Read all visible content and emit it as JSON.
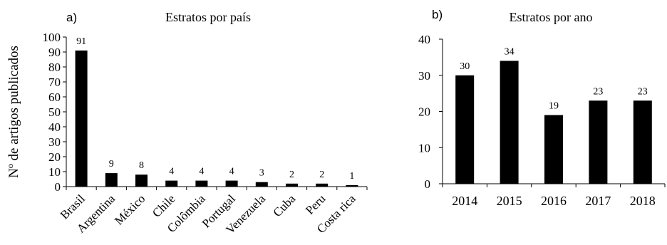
{
  "figure": {
    "background": "#ffffff",
    "bar_color": "#000000"
  },
  "chart_data": [
    {
      "panel_label": "a)",
      "type": "bar",
      "title": "Estratos por país",
      "ylabel": "Nº de artigos  publicados",
      "xlabel": "",
      "categories": [
        "Brasil",
        "Argentina",
        "México",
        "Chile",
        "Colômbia",
        "Portugal",
        "Venezuela",
        "Cuba",
        "Peru",
        "Costa rica"
      ],
      "values": [
        91,
        9,
        8,
        4,
        4,
        4,
        3,
        2,
        2,
        1
      ],
      "data_labels": [
        "91",
        "9",
        "8",
        "4",
        "4",
        "4",
        "3",
        "2",
        "2",
        "1"
      ],
      "ylim": [
        0,
        100
      ],
      "yticks": [
        0,
        10,
        20,
        30,
        40,
        50,
        60,
        70,
        80,
        90,
        100
      ],
      "grid": false,
      "legend": "none"
    },
    {
      "panel_label": "b)",
      "type": "bar",
      "title": "Estratos por ano",
      "ylabel": "",
      "xlabel": "",
      "categories": [
        "2014",
        "2015",
        "2016",
        "2017",
        "2018"
      ],
      "values": [
        30,
        34,
        19,
        23,
        23
      ],
      "data_labels": [
        "30",
        "34",
        "19",
        "23",
        "23"
      ],
      "ylim": [
        0,
        40
      ],
      "yticks": [
        0,
        10,
        20,
        30,
        40
      ],
      "grid": false,
      "legend": "none"
    }
  ]
}
